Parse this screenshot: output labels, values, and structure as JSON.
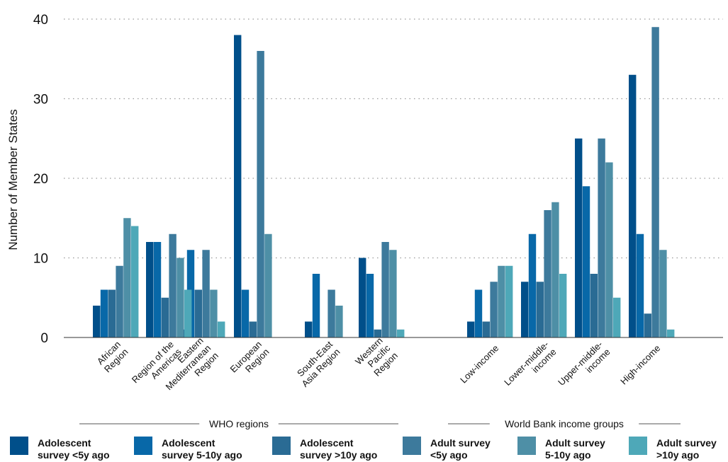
{
  "chart_data": {
    "type": "bar",
    "ylabel": "Number of Member States",
    "ylim": [
      0,
      40
    ],
    "yticks": [
      0,
      10,
      20,
      30,
      40
    ],
    "grid": "horizontal-dotted",
    "legend_position": "bottom",
    "groups": [
      {
        "label": "WHO regions",
        "categories": [
          "African Region",
          "Region of the Americas",
          "Eastern Mediterranean Region",
          "European Region",
          "South-East Asia Region",
          "Western Pacific Region"
        ]
      },
      {
        "label": "World Bank income groups",
        "categories": [
          "Low-income",
          "Lower-middle-income",
          "Upper-middle-income",
          "High-income"
        ]
      }
    ],
    "category_label_lines": [
      [
        "African",
        "Region"
      ],
      [
        "Region of the",
        "Americas"
      ],
      [
        "Eastern",
        "Mediterranean",
        "Region"
      ],
      [
        "European",
        "Region"
      ],
      [
        "South-East",
        "Asia Region"
      ],
      [
        "Western",
        "Pacific",
        "Region"
      ],
      [
        "Low-income"
      ],
      [
        "Lower-middle-",
        "income"
      ],
      [
        "Upper-middle-",
        "income"
      ],
      [
        "High-income"
      ]
    ],
    "series": [
      {
        "name": "Adolescent survey <5y ago",
        "legend_lines": [
          "Adolescent",
          "survey <5y ago"
        ],
        "color": "#004f8a",
        "values": [
          4,
          12,
          1,
          38,
          2,
          10,
          2,
          7,
          25,
          33
        ]
      },
      {
        "name": "Adolescent survey 5-10y ago",
        "legend_lines": [
          "Adolescent",
          "survey 5-10y ago"
        ],
        "color": "#0868a8",
        "values": [
          6,
          12,
          11,
          6,
          8,
          8,
          6,
          13,
          19,
          13
        ]
      },
      {
        "name": "Adolescent survey >10y ago",
        "legend_lines": [
          "Adolescent",
          "survey >10y ago"
        ],
        "color": "#2a6b94",
        "values": [
          6,
          5,
          6,
          2,
          0,
          1,
          2,
          7,
          8,
          3
        ]
      },
      {
        "name": "Adult survey <5y ago",
        "legend_lines": [
          "Adult survey",
          "<5y ago"
        ],
        "color": "#3d7a9c",
        "values": [
          9,
          13,
          11,
          36,
          6,
          12,
          7,
          16,
          25,
          39
        ]
      },
      {
        "name": "Adult survey 5-10y ago",
        "legend_lines": [
          "Adult survey",
          "5-10y ago"
        ],
        "color": "#4e8fa6",
        "values": [
          15,
          10,
          6,
          13,
          4,
          11,
          9,
          17,
          22,
          11
        ]
      },
      {
        "name": "Adult survey >10y ago",
        "legend_lines": [
          "Adult survey",
          ">10y ago"
        ],
        "color": "#4ea8b8",
        "values": [
          14,
          6,
          2,
          0,
          0,
          1,
          9,
          8,
          5,
          1
        ]
      }
    ]
  }
}
